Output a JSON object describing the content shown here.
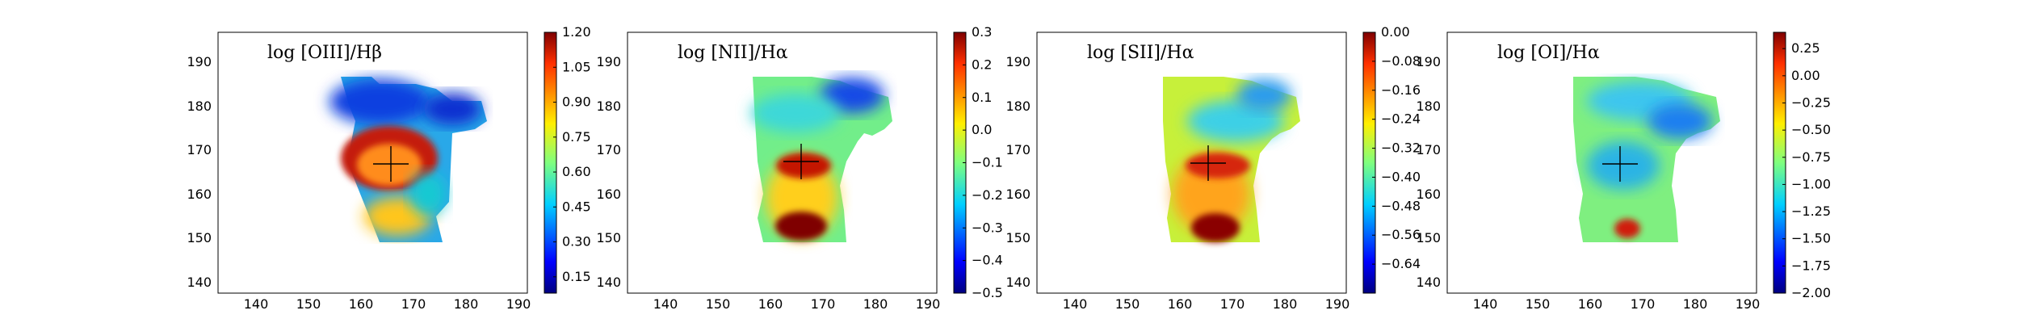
{
  "figure": {
    "panels": [
      {
        "title": "log [OIII]/Hβ",
        "colorbar_ticks": [
          "1.20",
          "1.05",
          "0.90",
          "0.75",
          "0.60",
          "0.45",
          "0.30",
          "0.15"
        ],
        "colorbar_values": [
          1.2,
          1.05,
          0.9,
          0.75,
          0.6,
          0.45,
          0.3,
          0.15
        ],
        "colorbar_range": [
          0.08,
          1.2
        ]
      },
      {
        "title": "log [NII]/Hα",
        "colorbar_ticks": [
          "0.3",
          "0.2",
          "0.1",
          "0.0",
          "−0.1",
          "−0.2",
          "−0.3",
          "−0.4",
          "−0.5"
        ],
        "colorbar_values": [
          0.3,
          0.2,
          0.1,
          0.0,
          -0.1,
          -0.2,
          -0.3,
          -0.4,
          -0.5
        ],
        "colorbar_range": [
          -0.5,
          0.3
        ]
      },
      {
        "title": "log [SII]/Hα",
        "colorbar_ticks": [
          "0.00",
          "−0.08",
          "−0.16",
          "−0.24",
          "−0.32",
          "−0.40",
          "−0.48",
          "−0.56",
          "−0.64"
        ],
        "colorbar_values": [
          0.0,
          -0.08,
          -0.16,
          -0.24,
          -0.32,
          -0.4,
          -0.48,
          -0.56,
          -0.64
        ],
        "colorbar_range": [
          -0.72,
          0.0
        ]
      },
      {
        "title": "log [OI]/Hα",
        "colorbar_ticks": [
          "0.25",
          "0.00",
          "−0.25",
          "−0.50",
          "−0.75",
          "−1.00",
          "−1.25",
          "−1.50",
          "−1.75",
          "−2.00"
        ],
        "colorbar_values": [
          0.25,
          0.0,
          -0.25,
          -0.5,
          -0.75,
          -1.0,
          -1.25,
          -1.5,
          -1.75,
          -2.0
        ],
        "colorbar_range": [
          -2.0,
          0.4
        ]
      }
    ]
  },
  "chart_data": [
    {
      "type": "heatmap",
      "title": "log [OIII]/Hβ",
      "xlim": [
        133,
        192
      ],
      "ylim": [
        137,
        198
      ],
      "xticks": [
        140,
        150,
        160,
        170,
        180,
        190
      ],
      "yticks": [
        140,
        150,
        160,
        170,
        180,
        190
      ],
      "colormap": "jet",
      "color_range": [
        0.08,
        1.2
      ],
      "center_marker": [
        163,
        167
      ],
      "features": [
        {
          "region": "top lobe",
          "x": [
            152,
            183
          ],
          "y": [
            170,
            187
          ],
          "approx_value": 0.3
        },
        {
          "region": "central ring",
          "x": [
            155,
            172
          ],
          "y": [
            162,
            172
          ],
          "approx_value": 1.1
        },
        {
          "region": "core",
          "center": [
            163,
            167
          ],
          "approx_value": 0.95
        },
        {
          "region": "lower body",
          "x": [
            154,
            172
          ],
          "y": [
            148,
            160
          ],
          "approx_value": 0.75
        }
      ]
    },
    {
      "type": "heatmap",
      "title": "log [NII]/Hα",
      "xlim": [
        133,
        192
      ],
      "ylim": [
        137,
        198
      ],
      "xticks": [
        140,
        150,
        160,
        170,
        180,
        190
      ],
      "yticks": [
        140,
        150,
        160,
        170,
        180,
        190
      ],
      "colormap": "jet",
      "color_range": [
        -0.5,
        0.3
      ],
      "center_marker": [
        163,
        167
      ],
      "features": [
        {
          "region": "upper body",
          "x": [
            153,
            183
          ],
          "y": [
            170,
            187
          ],
          "approx_value": -0.15
        },
        {
          "region": "upper-right corner",
          "center": [
            175,
            184
          ],
          "approx_value": -0.4
        },
        {
          "region": "central knot",
          "center": [
            164,
            167
          ],
          "approx_value": 0.25
        },
        {
          "region": "lower body",
          "x": [
            155,
            170
          ],
          "y": [
            149,
            163
          ],
          "approx_value": 0.05
        },
        {
          "region": "bottom knot",
          "center": [
            163,
            152
          ],
          "approx_value": 0.3
        }
      ]
    },
    {
      "type": "heatmap",
      "title": "log [SII]/Hα",
      "xlim": [
        133,
        192
      ],
      "ylim": [
        137,
        198
      ],
      "xticks": [
        140,
        150,
        160,
        170,
        180,
        190
      ],
      "yticks": [
        140,
        150,
        160,
        170,
        180,
        190
      ],
      "colormap": "jet",
      "color_range": [
        -0.72,
        0.0
      ],
      "center_marker": [
        162,
        167
      ],
      "features": [
        {
          "region": "upper body",
          "x": [
            153,
            183
          ],
          "y": [
            170,
            187
          ],
          "approx_value": -0.28
        },
        {
          "region": "upper-right corner",
          "center": [
            175,
            183
          ],
          "approx_value": -0.45
        },
        {
          "region": "central knot",
          "center": [
            163,
            167
          ],
          "approx_value": -0.04
        },
        {
          "region": "lower body",
          "x": [
            155,
            170
          ],
          "y": [
            149,
            163
          ],
          "approx_value": -0.16
        },
        {
          "region": "bottom knot",
          "center": [
            163,
            151
          ],
          "approx_value": -0.02
        }
      ]
    },
    {
      "type": "heatmap",
      "title": "log [OI]/Hα",
      "xlim": [
        133,
        192
      ],
      "ylim": [
        137,
        198
      ],
      "xticks": [
        140,
        150,
        160,
        170,
        180,
        190
      ],
      "yticks": [
        140,
        150,
        160,
        170,
        180,
        190
      ],
      "colormap": "jet",
      "color_range": [
        -2.0,
        0.4
      ],
      "center_marker": [
        163,
        167
      ],
      "features": [
        {
          "region": "upper body",
          "x": [
            153,
            183
          ],
          "y": [
            170,
            187
          ],
          "approx_value": -1.0
        },
        {
          "region": "upper-right region",
          "center": [
            174,
            180
          ],
          "approx_value": -1.5
        },
        {
          "region": "lower body",
          "x": [
            155,
            170
          ],
          "y": [
            149,
            165
          ],
          "approx_value": -0.8
        },
        {
          "region": "bottom knot",
          "center": [
            165,
            152
          ],
          "approx_value": 0.1
        }
      ]
    }
  ]
}
